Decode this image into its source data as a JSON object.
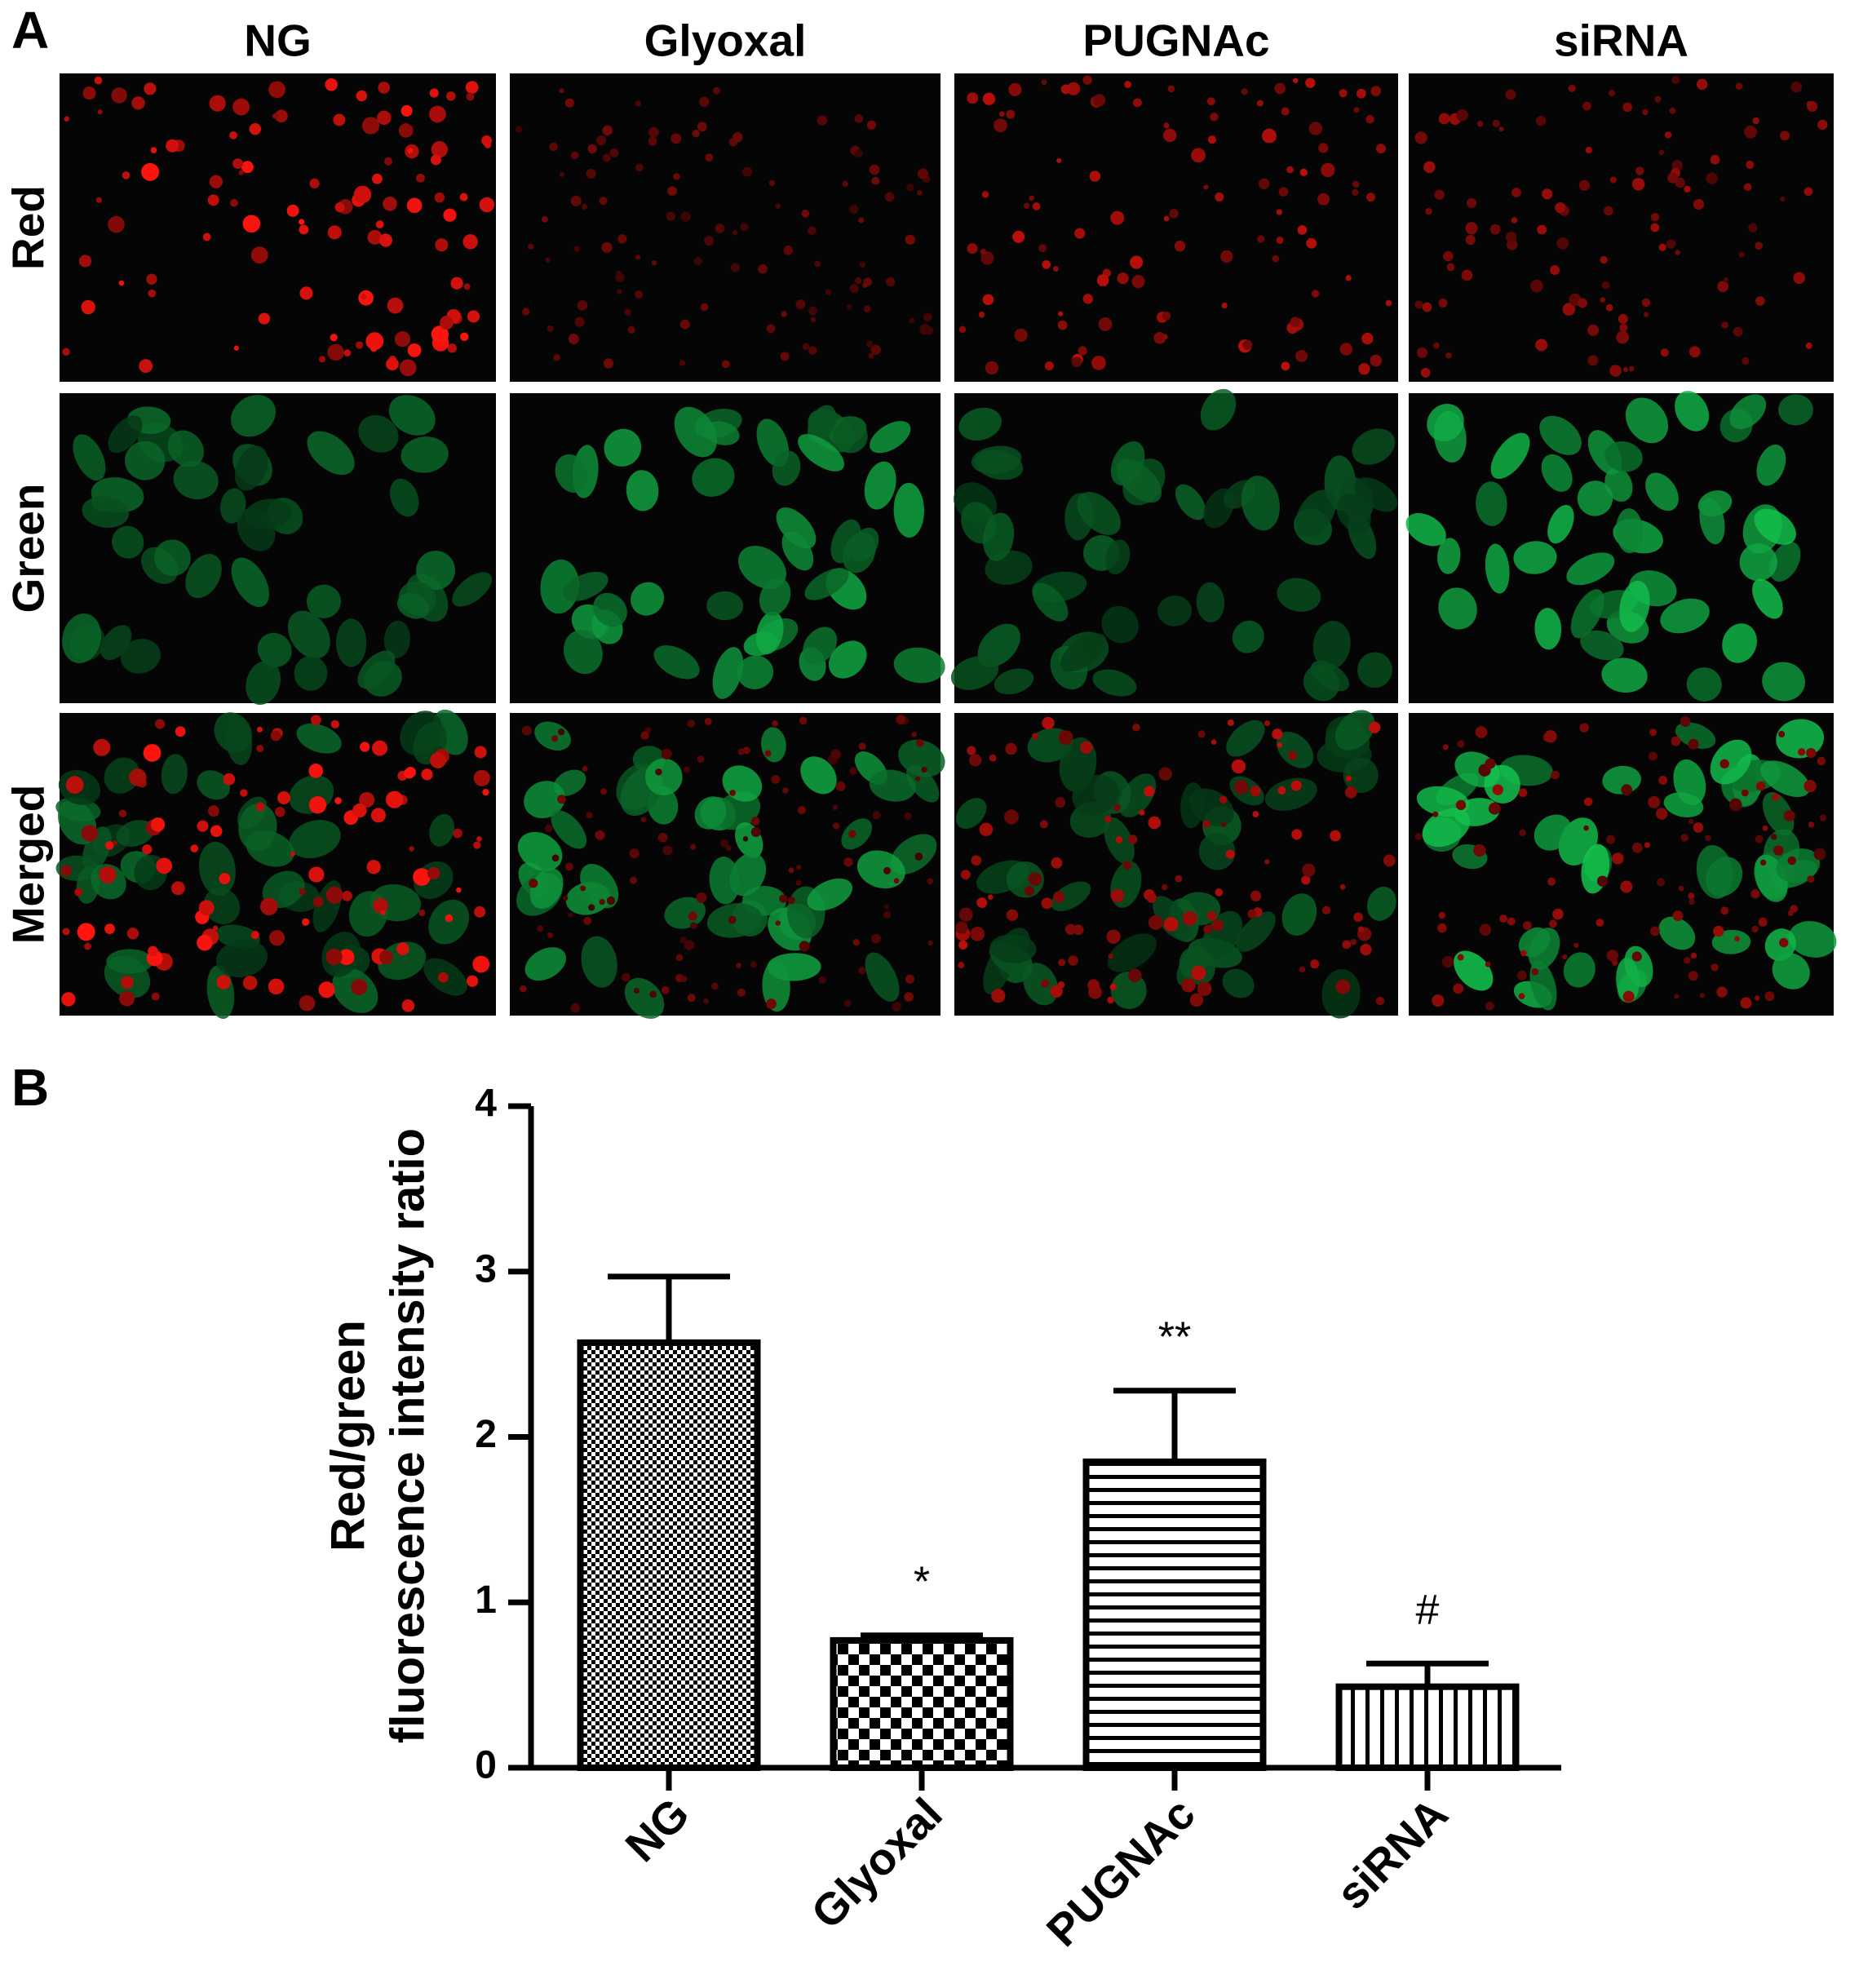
{
  "panel_a": {
    "label": "A",
    "columns": [
      "NG",
      "Glyoxal",
      "PUGNAc",
      "siRNA"
    ],
    "rows": [
      "Red",
      "Green",
      "Merged"
    ]
  },
  "panel_b": {
    "label": "B"
  },
  "chart_data": {
    "type": "bar",
    "ylabel": [
      "Red/green",
      "fluorescence intensity ratio"
    ],
    "categories": [
      "NG",
      "Glyoxal",
      "PUGNAc",
      "siRNA"
    ],
    "values": [
      2.57,
      0.77,
      1.85,
      0.49
    ],
    "errors": [
      0.4,
      0.03,
      0.43,
      0.14
    ],
    "annotations": [
      null,
      "*",
      "**",
      "#"
    ],
    "ylim": [
      0,
      4
    ],
    "yticks": [
      0,
      1,
      2,
      3,
      4
    ],
    "color": "#000000"
  }
}
